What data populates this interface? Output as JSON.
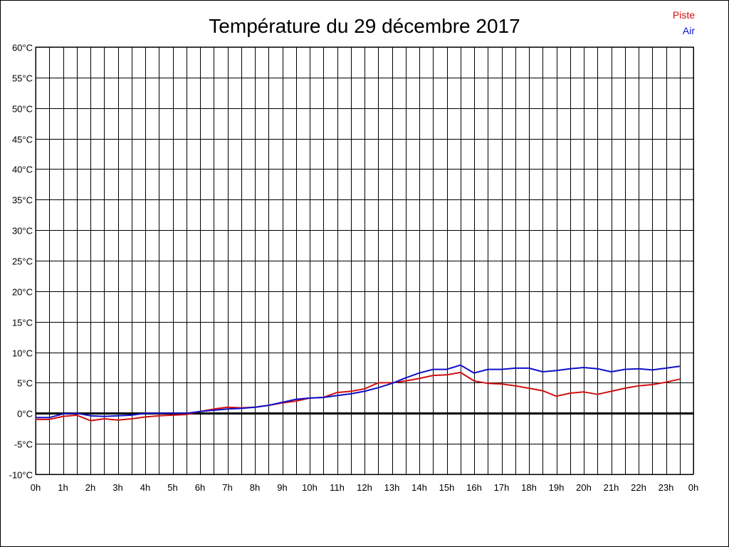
{
  "chart_data": {
    "type": "line",
    "title": "Température du 29 décembre 2017",
    "x_tick_labels": [
      "0h",
      "1h",
      "2h",
      "3h",
      "4h",
      "5h",
      "6h",
      "7h",
      "8h",
      "9h",
      "10h",
      "11h",
      "12h",
      "13h",
      "14h",
      "15h",
      "16h",
      "17h",
      "18h",
      "19h",
      "20h",
      "21h",
      "22h",
      "23h",
      "0h"
    ],
    "y_tick_labels": [
      "60°C",
      "55°C",
      "50°C",
      "45°C",
      "40°C",
      "35°C",
      "30°C",
      "25°C",
      "20°C",
      "15°C",
      "10°C",
      "5°C",
      "0°C",
      "-5°C",
      "-10°C"
    ],
    "xlim": [
      0,
      24
    ],
    "ylim": [
      -10,
      60
    ],
    "grid": true,
    "legend_position": "top-right",
    "x": [
      0,
      0.5,
      1,
      1.5,
      2,
      2.5,
      3,
      3.5,
      4,
      4.5,
      5,
      5.5,
      6,
      6.5,
      7,
      7.5,
      8,
      8.5,
      9,
      9.5,
      10,
      10.5,
      11,
      11.5,
      12,
      12.5,
      13,
      13.5,
      14,
      14.5,
      15,
      15.5,
      16,
      16.5,
      17,
      17.5,
      18,
      18.5,
      19,
      19.5,
      20,
      20.5,
      21,
      21.5,
      22,
      22.5,
      23,
      23.5
    ],
    "series": [
      {
        "name": "Piste",
        "color": "#d01010",
        "values": [
          -1.0,
          -1.0,
          -0.5,
          -0.3,
          -1.2,
          -0.9,
          -1.1,
          -0.9,
          -0.6,
          -0.4,
          -0.3,
          -0.2,
          0.3,
          0.7,
          1.0,
          0.9,
          1.0,
          1.3,
          1.7,
          2.0,
          2.5,
          2.6,
          3.4,
          3.6,
          4.0,
          5.0,
          5.0,
          5.3,
          5.7,
          6.2,
          6.3,
          6.7,
          5.3,
          4.9,
          4.8,
          4.5,
          4.1,
          3.7,
          2.8,
          3.3,
          3.5,
          3.1,
          3.6,
          4.1,
          4.5,
          4.7,
          5.1,
          5.6
        ]
      },
      {
        "name": "Air",
        "color": "#1010c8",
        "values": [
          -0.7,
          -0.7,
          -0.1,
          0.0,
          -0.4,
          -0.5,
          -0.4,
          -0.3,
          0.0,
          0.0,
          0.0,
          0.0,
          0.3,
          0.5,
          0.7,
          0.8,
          1.0,
          1.3,
          1.8,
          2.3,
          2.5,
          2.6,
          2.9,
          3.2,
          3.6,
          4.2,
          4.9,
          5.8,
          6.6,
          7.2,
          7.2,
          7.9,
          6.6,
          7.2,
          7.2,
          7.4,
          7.4,
          6.8,
          7.0,
          7.3,
          7.5,
          7.3,
          6.8,
          7.2,
          7.3,
          7.1,
          7.4,
          7.7
        ]
      }
    ]
  }
}
